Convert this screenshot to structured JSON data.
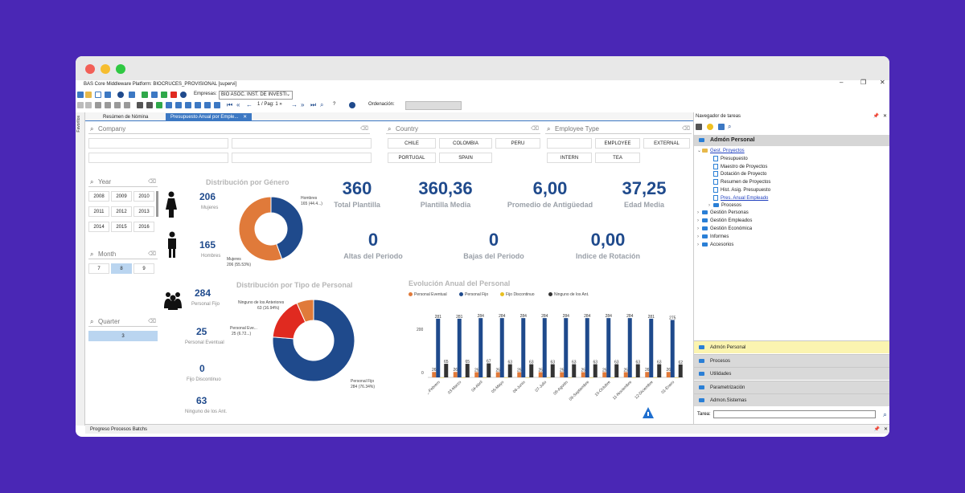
{
  "window": {
    "title": "BAS Core Middleware Platform: BIOCRUCES_PROVISIONAL [supervi]",
    "controls": [
      "–",
      "❐",
      "✕"
    ]
  },
  "toolbar": {
    "empresas_label": "Empresas:",
    "empresas_value": "BIO  ASOC. INST. DE INVESTI",
    "page_text": "1 / Pag: 1 »",
    "help_q": "?",
    "ordenacion_label": "Ordenación:"
  },
  "side_tab": "Favoritos",
  "tabs": [
    {
      "label": "Resúmen de Nómina"
    },
    {
      "label": "Presupuesto Anual por Emple..."
    }
  ],
  "filters": {
    "company_placeholder": "Company",
    "country_placeholder": "Country",
    "employee_type_placeholder": "Employee Type",
    "countries": [
      "CHILE",
      "COLOMBIA",
      "PERU",
      "PORTUGAL",
      "SPAIN"
    ],
    "employee_types": [
      "EMPLOYEE",
      "EXTERNAL",
      "INTERN",
      "TEA"
    ],
    "year_placeholder": "Year",
    "years": [
      "2008",
      "2009",
      "2010",
      "2011",
      "2012",
      "2013",
      "2014",
      "2015",
      "2016"
    ],
    "month_placeholder": "Month",
    "months": [
      "7",
      "8",
      "9"
    ],
    "selected_month": "8",
    "quarter_placeholder": "Quarter",
    "quarters": [
      "3"
    ]
  },
  "kpis": [
    {
      "value": "360",
      "label": "Total Plantilla"
    },
    {
      "value": "360,36",
      "label": "Plantilla Media"
    },
    {
      "value": "6,00",
      "label": "Promedio de Antigüedad"
    },
    {
      "value": "37,25",
      "label": "Edad Media"
    },
    {
      "value": "0",
      "label": "Altas del Periodo"
    },
    {
      "value": "0",
      "label": "Bajas del Periodo"
    },
    {
      "value": "0,00",
      "label": "Indice de Rotación"
    }
  ],
  "gender": {
    "title": "Distribución por Género",
    "women_count": "206",
    "women_label": "Mujeres",
    "men_count": "165",
    "men_label": "Hombres",
    "label_hombres": "Hombres",
    "label_hombres_val": "165 (44.4...)",
    "label_mujeres": "Mujeres",
    "label_mujeres_val": "206 (55.53%)",
    "color_hombres": "#1f4a8c",
    "color_mujeres": "#e07a3a"
  },
  "personal_type": {
    "title": "Distribución por Tipo de Personal",
    "fijo_count": "284",
    "fijo_label": "Personal Fijo",
    "eventual_count": "25",
    "eventual_label": "Personal Eventual",
    "discontinuo_count": "0",
    "discontinuo_label": "Fijo Discontinuo",
    "ninguno_count": "63",
    "ninguno_label": "Ninguno de los Ant.",
    "lbl_ninguno": "Ninguno de los Anteriores",
    "lbl_ninguno_val": "63 (16.94%)",
    "lbl_eventual": "Personal Eve...",
    "lbl_eventual_val": "25 (6.72...)",
    "lbl_fijo": "Personal Fijo",
    "lbl_fijo_val": "284 (76.34%)"
  },
  "evolution": {
    "title": "Evolución Anual del Personal",
    "y_tick_200": "200",
    "y_tick_0": "0"
  },
  "chart_data": [
    {
      "type": "pie",
      "title": "Distribución por Género",
      "categories": [
        "Hombres",
        "Mujeres"
      ],
      "values": [
        165,
        206
      ],
      "colors": [
        "#1f4a8c",
        "#e07a3a"
      ]
    },
    {
      "type": "pie",
      "title": "Distribución por Tipo de Personal",
      "categories": [
        "Personal Fijo",
        "Ninguno de los Anteriores",
        "Personal Eventual"
      ],
      "values": [
        284,
        63,
        25
      ],
      "colors": [
        "#1f4a8c",
        "#e02a20",
        "#e07a3a"
      ]
    },
    {
      "type": "bar",
      "title": "Evolución Anual del Personal",
      "categories": [
        "02-Febrero",
        "03-Marzo",
        "04-Abril",
        "05-Mayo",
        "06-Junio",
        "07-Julio",
        "08-Agosto",
        "09-Septiembre",
        "10-Octubre",
        "11-Noviembre",
        "12-Diciembre",
        "01-Enero"
      ],
      "series": [
        {
          "name": "Personal Eventual",
          "color": "#e07a3a",
          "values": [
            26,
            26,
            25,
            25,
            25,
            25,
            25,
            25,
            25,
            25,
            26,
            26
          ]
        },
        {
          "name": "Personal Fijo",
          "color": "#1f4a8c",
          "values": [
            281,
            281,
            284,
            284,
            284,
            284,
            284,
            284,
            284,
            284,
            281,
            275
          ]
        },
        {
          "name": "Fijo Discontinuo",
          "color": "#e8c020",
          "values": [
            0,
            0,
            0,
            0,
            0,
            0,
            0,
            0,
            0,
            0,
            0,
            0
          ]
        },
        {
          "name": "Ninguno de los Ant.",
          "color": "#333333",
          "values": [
            65,
            65,
            67,
            63,
            63,
            63,
            63,
            63,
            63,
            63,
            63,
            62
          ]
        }
      ],
      "ylim": [
        0,
        300
      ]
    }
  ],
  "navigator": {
    "title": "Navegador de tareas",
    "header": "Admón Personal",
    "tree": [
      {
        "label": "Gest. Proyectos",
        "level": 1,
        "kind": "folder-y",
        "link": true
      },
      {
        "label": "Presupuesto",
        "level": 2,
        "kind": "doc"
      },
      {
        "label": "Maestro de Proyectos",
        "level": 2,
        "kind": "doc"
      },
      {
        "label": "Dotación de Proyecto",
        "level": 2,
        "kind": "doc"
      },
      {
        "label": "Resumen de Proyectos",
        "level": 2,
        "kind": "doc"
      },
      {
        "label": "Hist. Asig. Presupuesto",
        "level": 2,
        "kind": "doc"
      },
      {
        "label": "Pres. Anual Empleado",
        "level": 2,
        "kind": "doc",
        "link": true
      },
      {
        "label": "Procesos",
        "level": 2,
        "kind": "folder"
      },
      {
        "label": "Gestión Personas",
        "level": 1,
        "kind": "folder"
      },
      {
        "label": "Gestión Empleados",
        "level": 1,
        "kind": "folder"
      },
      {
        "label": "Gestión Económica",
        "level": 1,
        "kind": "folder"
      },
      {
        "label": "Informes",
        "level": 1,
        "kind": "folder"
      },
      {
        "label": "Accesorios",
        "level": 1,
        "kind": "folder"
      }
    ],
    "accordion": [
      "Admón Personal",
      "Procesos",
      "Utilidades",
      "Parametrización",
      "Admon.Sistemas"
    ],
    "tarea_label": "Tarea:"
  },
  "statusbar": "Progreso Procesos Batchs"
}
